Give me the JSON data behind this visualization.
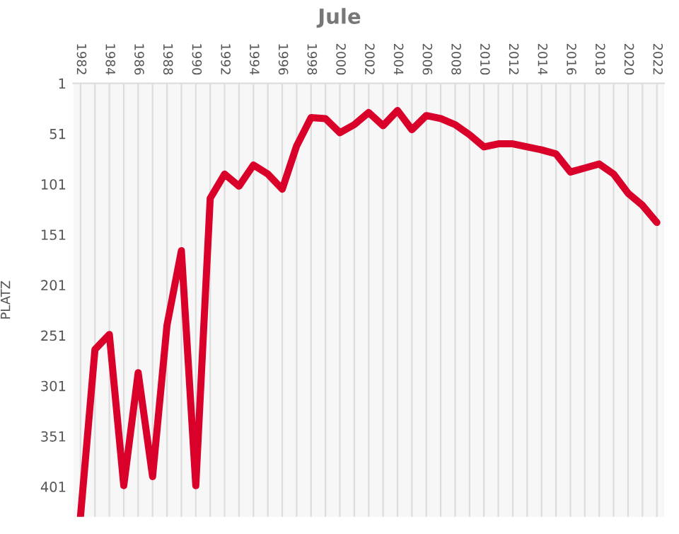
{
  "chart_data": {
    "type": "line",
    "title": "Jule",
    "ylabel": "PLATZ",
    "x": [
      1982,
      1983,
      1984,
      1985,
      1986,
      1987,
      1988,
      1989,
      1990,
      1991,
      1992,
      1993,
      1994,
      1995,
      1996,
      1997,
      1998,
      1999,
      2000,
      2001,
      2002,
      2003,
      2004,
      2005,
      2006,
      2007,
      2008,
      2009,
      2010,
      2011,
      2012,
      2013,
      2014,
      2015,
      2016,
      2017,
      2018,
      2019,
      2020,
      2021,
      2022
    ],
    "series": [
      {
        "color": "#d9002a",
        "values": [
          430,
          265,
          250,
          400,
          288,
          391,
          241,
          167,
          400,
          115,
          91,
          103,
          82,
          91,
          106,
          63,
          35,
          36,
          50,
          42,
          30,
          43,
          28,
          47,
          33,
          36,
          42,
          52,
          64,
          61,
          61,
          64,
          67,
          71,
          89,
          85,
          81,
          91,
          110,
          122,
          139
        ]
      }
    ],
    "xlim": [
      1981.5,
      2022.5
    ],
    "xticks": [
      1982,
      {
        "value": 1983,
        "label": null
      },
      1984,
      {
        "value": 1985,
        "label": null
      },
      1986,
      {
        "value": 1987,
        "label": null
      },
      1988,
      {
        "value": 1989,
        "label": null
      },
      1990,
      {
        "value": 1991,
        "label": null
      },
      1992,
      {
        "value": 1993,
        "label": null
      },
      1994,
      {
        "value": 1995,
        "label": null
      },
      1996,
      {
        "value": 1997,
        "label": null
      },
      1998,
      {
        "value": 1999,
        "label": null
      },
      2000,
      {
        "value": 2001,
        "label": null
      },
      2002,
      {
        "value": 2003,
        "label": null
      },
      2004,
      {
        "value": 2005,
        "label": null
      },
      2006,
      {
        "value": 2007,
        "label": null
      },
      2008,
      {
        "value": 2009,
        "label": null
      },
      2010,
      {
        "value": 2011,
        "label": null
      },
      2012,
      {
        "value": 2013,
        "label": null
      },
      2014,
      {
        "value": 2015,
        "label": null
      },
      2016,
      {
        "value": 2017,
        "label": null
      },
      2018,
      {
        "value": 2019,
        "label": null
      },
      2020,
      {
        "value": 2021,
        "label": null
      },
      2022
    ],
    "ylim": [
      431,
      1
    ],
    "yticks": [
      1,
      51,
      101,
      151,
      201,
      251,
      301,
      351,
      401
    ],
    "grid": "x",
    "marker": "none",
    "line_style": "solid"
  }
}
